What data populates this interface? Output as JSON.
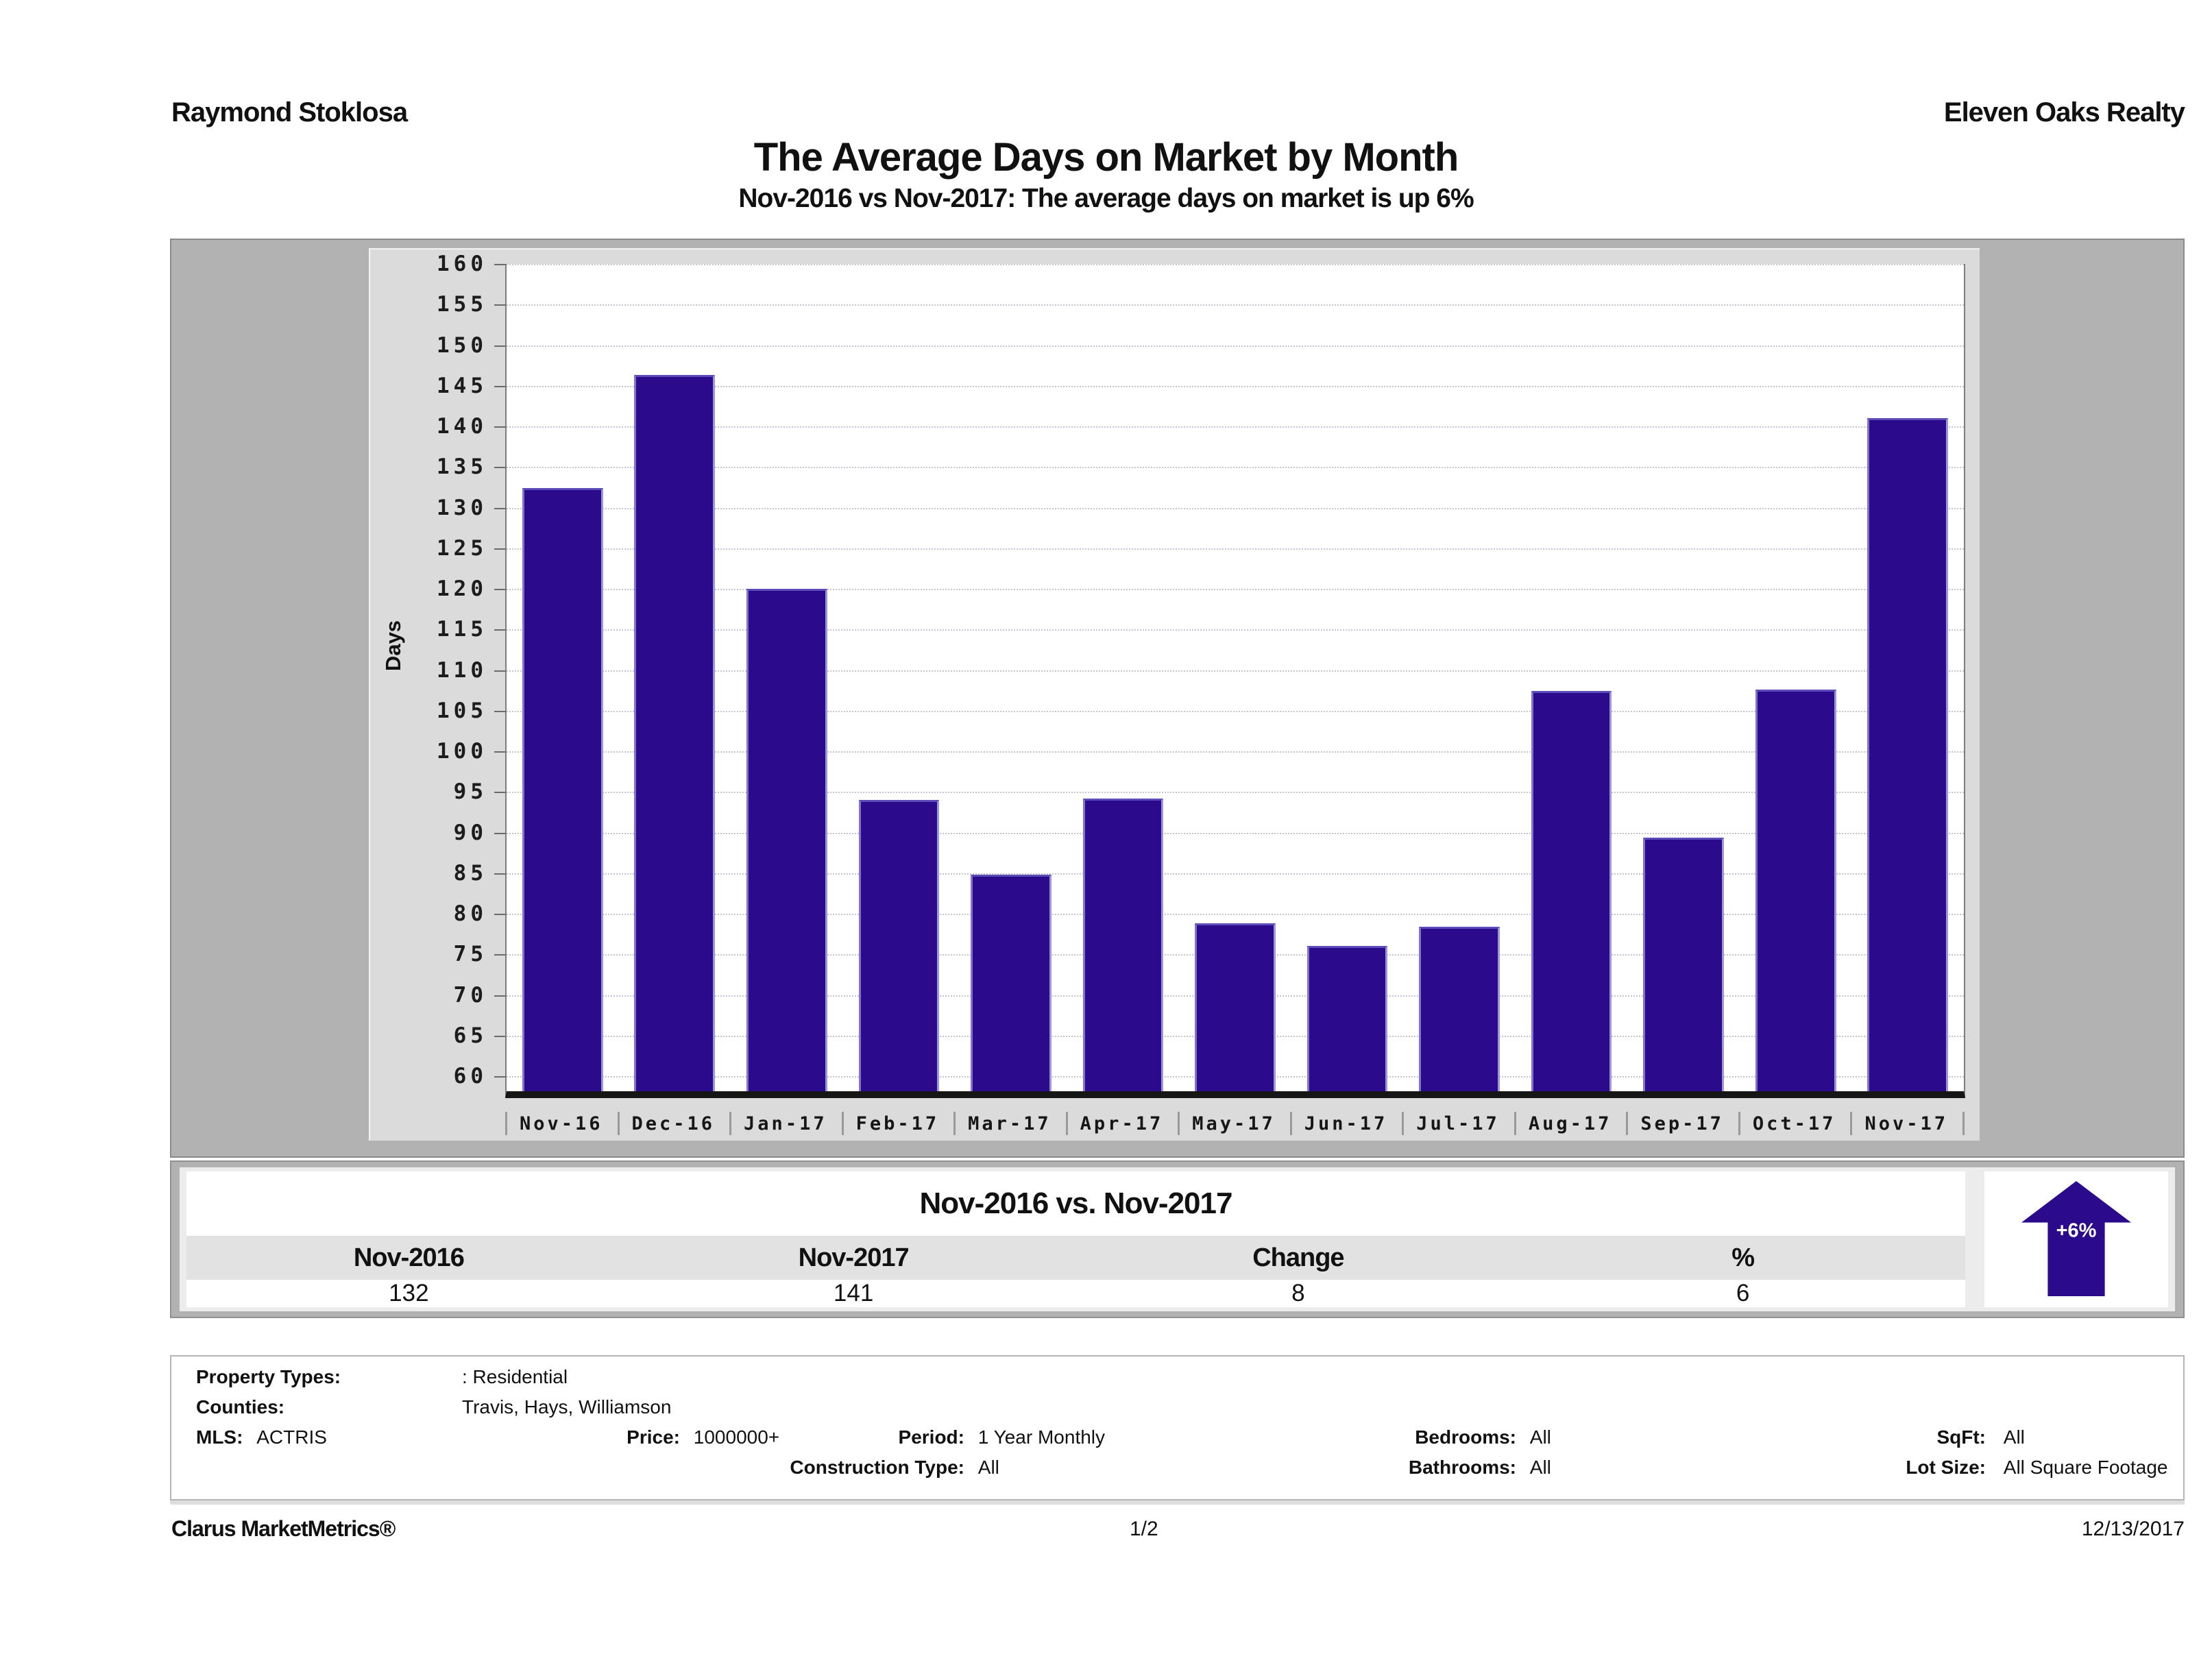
{
  "header": {
    "agent": "Raymond Stoklosa",
    "company": "Eleven Oaks Realty"
  },
  "title": "The Average Days on Market by Month",
  "subtitle": "Nov-2016 vs Nov-2017: The average days on market is up 6%",
  "chart_data": {
    "type": "bar",
    "title": "The Average Days on Market by Month",
    "xlabel": "",
    "ylabel": "Days",
    "ylim": [
      60,
      160
    ],
    "ytick_step": 5,
    "grid": true,
    "legend": "none",
    "bar_color": "#2b0a8c",
    "categories": [
      "Nov-16",
      "Dec-16",
      "Jan-17",
      "Feb-17",
      "Mar-17",
      "Apr-17",
      "May-17",
      "Jun-17",
      "Jul-17",
      "Aug-17",
      "Sep-17",
      "Oct-17",
      "Nov-17"
    ],
    "values": [
      132.4,
      146.3,
      120.0,
      94.0,
      84.8,
      94.2,
      78.8,
      76.0,
      78.4,
      107.4,
      89.4,
      107.6,
      141.0
    ]
  },
  "summary_table": {
    "title": "Nov-2016 vs. Nov-2017",
    "columns": [
      "Nov-2016",
      "Nov-2017",
      "Change",
      "%"
    ],
    "values": [
      "132",
      "141",
      "8",
      "6"
    ],
    "badge": {
      "label": "+6%",
      "direction": "up",
      "color": "#2b0a8c"
    }
  },
  "filters": {
    "property_types_label": "Property Types:",
    "property_types_value": ": Residential",
    "counties_label": "Counties:",
    "counties_value": "Travis, Hays, Williamson",
    "mls_label": "MLS:",
    "mls_value": "ACTRIS",
    "price_label": "Price:",
    "price_value": "1000000+",
    "period_label": "Period:",
    "period_value": "1 Year Monthly",
    "construction_label": "Construction Type:",
    "construction_value": "All",
    "bedrooms_label": "Bedrooms:",
    "bedrooms_value": "All",
    "bathrooms_label": "Bathrooms:",
    "bathrooms_value": "All",
    "sqft_label": "SqFt:",
    "sqft_value": "All",
    "lot_label": "Lot Size:",
    "lot_value": "All Square Footage"
  },
  "footer": {
    "left": "Clarus MarketMetrics®",
    "center": "1/2",
    "right": "12/13/2017"
  }
}
